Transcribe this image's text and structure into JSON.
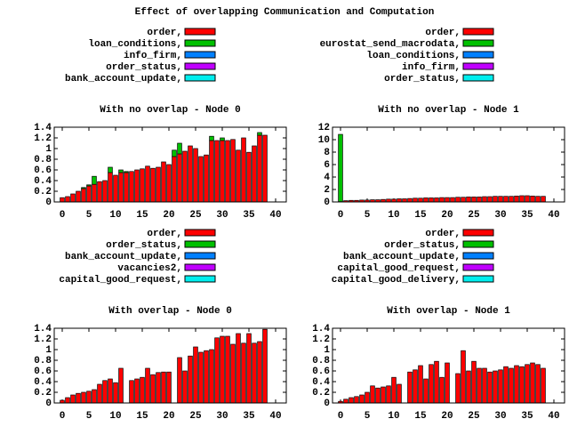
{
  "title": "Effect of overlapping Communication and Computation",
  "chart_data": [
    {
      "type": "bar",
      "stacked": true,
      "title": "With no overlap - Node 0",
      "legend": "top",
      "x": [
        0,
        1,
        2,
        3,
        4,
        5,
        6,
        7,
        8,
        9,
        10,
        11,
        12,
        13,
        14,
        15,
        16,
        17,
        18,
        19,
        20,
        21,
        22,
        23,
        24,
        25,
        26,
        27,
        28,
        29,
        30,
        31,
        32,
        33,
        34,
        35,
        36,
        37,
        38
      ],
      "xlim": [
        -1.5,
        42
      ],
      "xticks": [
        0,
        5,
        10,
        15,
        20,
        25,
        30,
        35,
        40
      ],
      "ylim": [
        0,
        1.4
      ],
      "yticks": [
        0,
        0.2,
        0.4,
        0.6,
        0.8,
        1,
        1.2,
        1.4
      ],
      "series": [
        {
          "name": "order,",
          "color": "#ff0000",
          "values": [
            0.08,
            0.1,
            0.15,
            0.2,
            0.25,
            0.3,
            0.33,
            0.38,
            0.4,
            0.55,
            0.5,
            0.55,
            0.55,
            0.57,
            0.6,
            0.62,
            0.67,
            0.63,
            0.65,
            0.75,
            0.7,
            0.85,
            0.9,
            0.95,
            1.05,
            1.0,
            0.85,
            0.88,
            1.15,
            1.15,
            1.15,
            1.15,
            1.17,
            0.97,
            1.2,
            0.93,
            1.05,
            1.25,
            1.25
          ]
        },
        {
          "name": "loan_conditions,",
          "color": "#00c000",
          "values": [
            0,
            0,
            0,
            0,
            0.02,
            0.02,
            0.15,
            0,
            0,
            0.1,
            0,
            0.05,
            0.02,
            0,
            0,
            0,
            0,
            0,
            0,
            0,
            0,
            0.12,
            0.2,
            0,
            0,
            0,
            0,
            0,
            0.08,
            0,
            0.05,
            0,
            0,
            0,
            0,
            0,
            0,
            0.05,
            0
          ]
        },
        {
          "name": "info_firm,",
          "color": "#0080ff",
          "values": [
            0,
            0,
            0,
            0,
            0,
            0,
            0,
            0,
            0,
            0,
            0,
            0,
            0,
            0,
            0,
            0,
            0,
            0,
            0,
            0,
            0,
            0,
            0,
            0,
            0,
            0,
            0,
            0,
            0,
            0,
            0,
            0,
            0,
            0,
            0,
            0,
            0,
            0,
            0
          ]
        },
        {
          "name": "order_status,",
          "color": "#c000ff",
          "values": [
            0,
            0,
            0,
            0,
            0,
            0,
            0,
            0,
            0,
            0,
            0,
            0,
            0,
            0,
            0,
            0,
            0,
            0,
            0,
            0,
            0,
            0,
            0,
            0,
            0,
            0,
            0,
            0,
            0,
            0,
            0,
            0,
            0,
            0,
            0,
            0,
            0,
            0,
            0
          ]
        },
        {
          "name": "bank_account_update,",
          "color": "#00eeee",
          "values": [
            0,
            0,
            0,
            0,
            0,
            0,
            0,
            0,
            0,
            0,
            0,
            0,
            0,
            0,
            0,
            0,
            0,
            0,
            0,
            0,
            0,
            0,
            0,
            0,
            0,
            0,
            0,
            0,
            0,
            0,
            0,
            0,
            0,
            0,
            0,
            0,
            0,
            0,
            0
          ]
        }
      ]
    },
    {
      "type": "bar",
      "stacked": true,
      "title": "With no overlap - Node 1",
      "legend": "top",
      "x": [
        0,
        1,
        2,
        3,
        4,
        5,
        6,
        7,
        8,
        9,
        10,
        11,
        12,
        13,
        14,
        15,
        16,
        17,
        18,
        19,
        20,
        21,
        22,
        23,
        24,
        25,
        26,
        27,
        28,
        29,
        30,
        31,
        32,
        33,
        34,
        35,
        36,
        37,
        38
      ],
      "xlim": [
        -1.5,
        42
      ],
      "xticks": [
        0,
        5,
        10,
        15,
        20,
        25,
        30,
        35,
        40
      ],
      "ylim": [
        0,
        12
      ],
      "yticks": [
        0,
        2,
        4,
        6,
        8,
        10,
        12
      ],
      "series": [
        {
          "name": "order,",
          "color": "#ff0000",
          "values": [
            0.05,
            0.2,
            0.25,
            0.25,
            0.3,
            0.3,
            0.35,
            0.35,
            0.4,
            0.45,
            0.45,
            0.5,
            0.5,
            0.55,
            0.6,
            0.6,
            0.65,
            0.65,
            0.65,
            0.7,
            0.7,
            0.7,
            0.75,
            0.75,
            0.8,
            0.8,
            0.8,
            0.85,
            0.85,
            0.9,
            0.9,
            0.9,
            0.9,
            0.95,
            1.0,
            1.0,
            0.95,
            0.9,
            0.9
          ]
        },
        {
          "name": "eurostat_send_macrodata,",
          "color": "#00c000",
          "values": [
            10.8,
            0,
            0,
            0,
            0,
            0,
            0,
            0,
            0,
            0,
            0,
            0,
            0,
            0,
            0,
            0,
            0,
            0,
            0,
            0,
            0,
            0,
            0,
            0,
            0,
            0,
            0,
            0,
            0,
            0,
            0,
            0,
            0,
            0,
            0,
            0,
            0,
            0,
            0
          ]
        },
        {
          "name": "loan_conditions,",
          "color": "#0080ff",
          "values": [
            0,
            0,
            0,
            0,
            0,
            0,
            0,
            0,
            0,
            0,
            0,
            0,
            0,
            0,
            0,
            0,
            0,
            0,
            0,
            0,
            0,
            0,
            0,
            0,
            0,
            0,
            0,
            0,
            0,
            0,
            0,
            0,
            0,
            0,
            0,
            0,
            0,
            0,
            0
          ]
        },
        {
          "name": "info_firm,",
          "color": "#c000ff",
          "values": [
            0,
            0,
            0,
            0,
            0,
            0,
            0,
            0,
            0,
            0,
            0,
            0,
            0,
            0,
            0,
            0,
            0,
            0,
            0,
            0,
            0,
            0,
            0,
            0,
            0,
            0,
            0,
            0,
            0,
            0,
            0,
            0,
            0,
            0,
            0,
            0,
            0,
            0,
            0
          ]
        },
        {
          "name": "order_status,",
          "color": "#00eeee",
          "values": [
            0,
            0,
            0,
            0,
            0,
            0,
            0,
            0,
            0,
            0,
            0,
            0,
            0,
            0,
            0,
            0,
            0,
            0,
            0,
            0,
            0,
            0,
            0,
            0,
            0,
            0,
            0,
            0,
            0,
            0,
            0,
            0,
            0,
            0,
            0,
            0,
            0,
            0,
            0
          ]
        }
      ]
    },
    {
      "type": "bar",
      "stacked": true,
      "title": "With overlap - Node 0",
      "legend": "top",
      "x": [
        0,
        1,
        2,
        3,
        4,
        5,
        6,
        7,
        8,
        9,
        10,
        11,
        12,
        13,
        14,
        15,
        16,
        17,
        18,
        19,
        20,
        21,
        22,
        23,
        24,
        25,
        26,
        27,
        28,
        29,
        30,
        31,
        32,
        33,
        34,
        35,
        36,
        37,
        38
      ],
      "xlim": [
        -1.5,
        42
      ],
      "xticks": [
        0,
        5,
        10,
        15,
        20,
        25,
        30,
        35,
        40
      ],
      "ylim": [
        0,
        1.4
      ],
      "yticks": [
        0,
        0.2,
        0.4,
        0.6,
        0.8,
        1,
        1.2,
        1.4
      ],
      "series": [
        {
          "name": "order,",
          "color": "#ff0000",
          "values": [
            0.05,
            0.1,
            0.15,
            0.18,
            0.2,
            0.22,
            0.25,
            0.35,
            0.42,
            0.45,
            0.38,
            0.65,
            0,
            0.42,
            0.45,
            0.48,
            0.65,
            0.53,
            0.57,
            0.58,
            0.58,
            0,
            0.85,
            0.6,
            0.88,
            1.05,
            0.95,
            0.98,
            1.0,
            1.22,
            1.25,
            1.25,
            1.1,
            1.3,
            1.12,
            1.3,
            1.12,
            1.15,
            1.38
          ]
        },
        {
          "name": "order_status,",
          "color": "#00c000",
          "values": [
            0,
            0,
            0,
            0,
            0,
            0,
            0,
            0,
            0,
            0,
            0,
            0,
            0,
            0,
            0,
            0,
            0,
            0,
            0,
            0,
            0,
            0,
            0,
            0,
            0,
            0,
            0,
            0,
            0,
            0,
            0,
            0,
            0,
            0,
            0,
            0,
            0,
            0,
            0
          ]
        },
        {
          "name": "bank_account_update,",
          "color": "#0080ff",
          "values": [
            0,
            0,
            0,
            0,
            0,
            0,
            0,
            0,
            0,
            0,
            0,
            0,
            0,
            0,
            0,
            0,
            0,
            0,
            0,
            0,
            0,
            0,
            0,
            0,
            0,
            0,
            0,
            0,
            0,
            0,
            0,
            0,
            0,
            0,
            0,
            0,
            0,
            0,
            0
          ]
        },
        {
          "name": "vacancies2,",
          "color": "#c000ff",
          "values": [
            0,
            0,
            0,
            0,
            0,
            0,
            0,
            0,
            0,
            0,
            0,
            0,
            0,
            0,
            0,
            0,
            0,
            0,
            0,
            0,
            0,
            0,
            0,
            0,
            0,
            0,
            0,
            0,
            0,
            0,
            0,
            0,
            0,
            0,
            0,
            0,
            0,
            0,
            0
          ]
        },
        {
          "name": "capital_good_request,",
          "color": "#00eeee",
          "values": [
            0,
            0,
            0,
            0,
            0,
            0,
            0,
            0,
            0,
            0,
            0,
            0,
            0,
            0,
            0,
            0,
            0,
            0,
            0,
            0,
            0,
            0,
            0,
            0,
            0,
            0,
            0,
            0,
            0,
            0,
            0,
            0,
            0,
            0,
            0,
            0,
            0,
            0,
            0
          ]
        }
      ]
    },
    {
      "type": "bar",
      "stacked": true,
      "title": "With overlap - Node 1",
      "legend": "top",
      "x": [
        0,
        1,
        2,
        3,
        4,
        5,
        6,
        7,
        8,
        9,
        10,
        11,
        12,
        13,
        14,
        15,
        16,
        17,
        18,
        19,
        20,
        21,
        22,
        23,
        24,
        25,
        26,
        27,
        28,
        29,
        30,
        31,
        32,
        33,
        34,
        35,
        36,
        37,
        38
      ],
      "xlim": [
        -1.5,
        42
      ],
      "xticks": [
        0,
        5,
        10,
        15,
        20,
        25,
        30,
        35,
        40
      ],
      "ylim": [
        0,
        1.4
      ],
      "yticks": [
        0,
        0.2,
        0.4,
        0.6,
        0.8,
        1,
        1.2,
        1.4
      ],
      "series": [
        {
          "name": "order,",
          "color": "#ff0000",
          "values": [
            0.03,
            0.07,
            0.1,
            0.12,
            0.15,
            0.2,
            0.32,
            0.28,
            0.3,
            0.32,
            0.48,
            0.35,
            0,
            0.58,
            0.62,
            0.7,
            0.45,
            0.72,
            0.78,
            0.48,
            0.75,
            0,
            0.55,
            0.98,
            0.6,
            0.78,
            0.65,
            0.65,
            0.58,
            0.6,
            0.62,
            0.68,
            0.65,
            0.7,
            0.68,
            0.72,
            0.75,
            0.72,
            0.65
          ]
        },
        {
          "name": "order_status,",
          "color": "#00c000",
          "values": [
            0,
            0,
            0,
            0,
            0,
            0,
            0,
            0,
            0,
            0,
            0,
            0,
            0,
            0,
            0,
            0,
            0,
            0,
            0,
            0,
            0,
            0,
            0,
            0,
            0,
            0,
            0,
            0,
            0,
            0,
            0,
            0,
            0,
            0,
            0,
            0,
            0,
            0,
            0
          ]
        },
        {
          "name": "bank_account_update,",
          "color": "#0080ff",
          "values": [
            0,
            0,
            0,
            0,
            0,
            0,
            0,
            0,
            0,
            0,
            0,
            0,
            0,
            0,
            0,
            0,
            0,
            0,
            0,
            0,
            0,
            0,
            0,
            0,
            0,
            0,
            0,
            0,
            0,
            0,
            0,
            0,
            0,
            0,
            0,
            0,
            0,
            0,
            0
          ]
        },
        {
          "name": "capital_good_request,",
          "color": "#c000ff",
          "values": [
            0,
            0,
            0,
            0,
            0,
            0,
            0,
            0,
            0,
            0,
            0,
            0,
            0,
            0,
            0,
            0,
            0,
            0,
            0,
            0,
            0,
            0,
            0,
            0,
            0,
            0,
            0,
            0,
            0,
            0,
            0,
            0,
            0,
            0,
            0,
            0,
            0,
            0,
            0
          ]
        },
        {
          "name": "capital_good_delivery,",
          "color": "#00eeee",
          "values": [
            0,
            0,
            0,
            0,
            0,
            0,
            0,
            0,
            0,
            0,
            0,
            0,
            0,
            0,
            0,
            0,
            0,
            0,
            0,
            0,
            0,
            0,
            0,
            0,
            0,
            0,
            0,
            0,
            0,
            0,
            0,
            0,
            0,
            0,
            0,
            0,
            0,
            0,
            0
          ]
        }
      ]
    }
  ]
}
